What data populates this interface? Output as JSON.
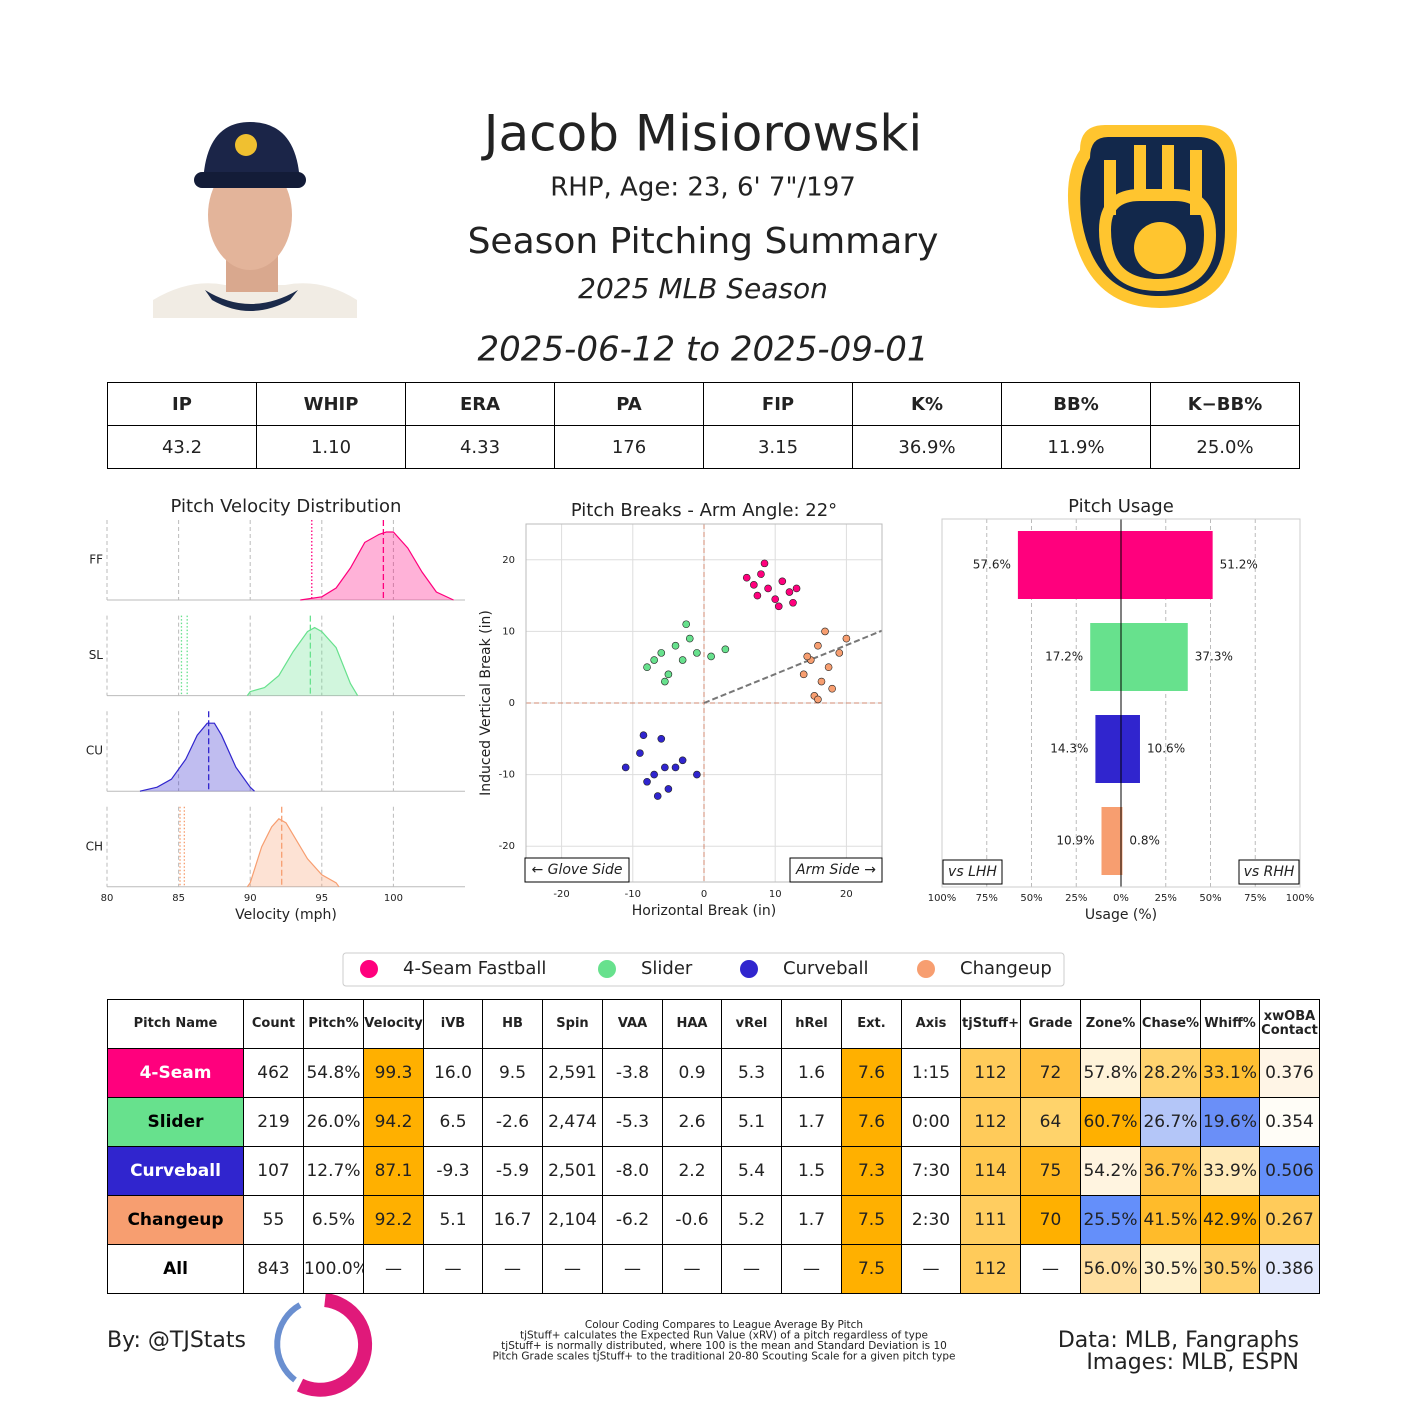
{
  "header": {
    "name": "Jacob Misiorowski",
    "bio": "RHP, Age: 23, 6' 7\"/197",
    "title": "Season Pitching Summary",
    "season": "2025 MLB Season",
    "dates": "2025-06-12 to 2025-09-01"
  },
  "stats": {
    "columns": [
      "IP",
      "WHIP",
      "ERA",
      "PA",
      "FIP",
      "K%",
      "BB%",
      "K−BB%"
    ],
    "values": [
      "43.2",
      "1.10",
      "4.33",
      "176",
      "3.15",
      "36.9%",
      "11.9%",
      "25.0%"
    ]
  },
  "chart_data": [
    {
      "type": "density",
      "title": "Pitch Velocity Distribution",
      "xlabel": "Velocity (mph)",
      "xlim": [
        80,
        105
      ],
      "xticks": [
        80,
        85,
        90,
        95,
        100
      ],
      "ylim": [
        0,
        1
      ],
      "grid": true,
      "series": [
        {
          "name": "FF",
          "color": "#ff007d",
          "x": [
            93.5,
            95,
            96,
            97,
            98,
            99,
            99.5,
            100,
            101,
            102,
            103,
            104.2
          ],
          "values": [
            0,
            0.04,
            0.15,
            0.4,
            0.72,
            0.82,
            0.85,
            0.85,
            0.65,
            0.35,
            0.1,
            0
          ],
          "mean": 99.3,
          "references": [
            94.3
          ]
        },
        {
          "name": "SL",
          "color": "#67e18d",
          "x": [
            89.8,
            90,
            91,
            92,
            93,
            94,
            94.5,
            95,
            96,
            97,
            97.5
          ],
          "values": [
            0,
            0.05,
            0.1,
            0.25,
            0.55,
            0.8,
            0.85,
            0.8,
            0.6,
            0.15,
            0
          ],
          "mean": 94.2,
          "references": [
            85.2,
            85.6
          ]
        },
        {
          "name": "CU",
          "color": "#3025ce",
          "x": [
            82.3,
            83.5,
            84.5,
            85.5,
            86.3,
            87,
            87.5,
            88,
            89,
            90,
            90.3
          ],
          "values": [
            0,
            0.05,
            0.15,
            0.4,
            0.7,
            0.85,
            0.85,
            0.7,
            0.3,
            0.05,
            0
          ],
          "mean": 87.1,
          "references": []
        },
        {
          "name": "CH",
          "color": "#f79e70",
          "x": [
            89.8,
            90,
            90.8,
            91.5,
            92,
            92.5,
            93,
            94,
            95,
            96,
            96.2
          ],
          "values": [
            0,
            0.05,
            0.5,
            0.75,
            0.85,
            0.8,
            0.65,
            0.35,
            0.15,
            0.05,
            0
          ],
          "mean": 92.2,
          "references": [
            85.1,
            85.4
          ]
        }
      ]
    },
    {
      "type": "scatter",
      "title": "Pitch Breaks - Arm Angle: 22°",
      "xlabel": "Horizontal Break (in)",
      "ylabel": "Induced Vertical Break (in)",
      "xlim": [
        -25,
        25
      ],
      "ylim": [
        -25,
        25
      ],
      "xticks": [
        -20,
        -10,
        0,
        10,
        20
      ],
      "yticks": [
        -20,
        -10,
        0,
        10,
        20
      ],
      "grid": true,
      "arm_angle": 22,
      "annotations": [
        "← Glove Side",
        "Arm Side →"
      ],
      "series": [
        {
          "name": "4-Seam Fastball",
          "color": "#ff007d",
          "x": [
            6,
            7.5,
            8,
            9,
            10,
            11,
            12,
            13,
            8.5,
            10.5,
            7,
            12.5
          ],
          "values": [
            17.5,
            15,
            18,
            16,
            14.5,
            17,
            15.5,
            16,
            19.5,
            13.5,
            16.5,
            14
          ]
        },
        {
          "name": "Slider",
          "color": "#67e18d",
          "x": [
            -8,
            -6,
            -5,
            -4,
            -3,
            -2,
            -1,
            1,
            3,
            -5.5,
            -2.5,
            -7
          ],
          "values": [
            5,
            7,
            4,
            8,
            6,
            9,
            7,
            6.5,
            7.5,
            3,
            11,
            6
          ]
        },
        {
          "name": "Curveball",
          "color": "#3025ce",
          "x": [
            -11,
            -9,
            -8,
            -7,
            -6,
            -5,
            -4,
            -3,
            -1,
            -6.5,
            -8.5,
            -5.5
          ],
          "values": [
            -9,
            -7,
            -11,
            -10,
            -5,
            -12,
            -9,
            -8,
            -10,
            -13,
            -4.5,
            -9
          ]
        },
        {
          "name": "Changeup",
          "color": "#f79e70",
          "x": [
            14,
            15,
            15.5,
            16,
            16.5,
            17,
            17.5,
            18,
            19,
            20,
            14.5,
            16
          ],
          "values": [
            4,
            6,
            1,
            8,
            3,
            10,
            5,
            2,
            7,
            9,
            6.5,
            0.5
          ]
        }
      ]
    },
    {
      "type": "diverging_bar",
      "title": "Pitch Usage",
      "xlabel": "Usage (%)",
      "xlim": [
        -100,
        100
      ],
      "grid": true,
      "xticks": [
        {
          "value": -100,
          "label": "100%"
        },
        {
          "value": -75,
          "label": "75%"
        },
        {
          "value": -50,
          "label": "50%"
        },
        {
          "value": -25,
          "label": "25%"
        },
        {
          "value": 0,
          "label": "0%"
        },
        {
          "value": 25,
          "label": "25%"
        },
        {
          "value": 50,
          "label": "50%"
        },
        {
          "value": 75,
          "label": "75%"
        },
        {
          "value": 100,
          "label": "100%"
        }
      ],
      "colors": [
        "#ff007d",
        "#67e18d",
        "#3025ce",
        "#f79e70"
      ],
      "series": [
        {
          "name": "vs LHH",
          "side": "left",
          "values": [
            57.6,
            17.2,
            14.3,
            10.9
          ],
          "value_labels": [
            "57.6%",
            "17.2%",
            "14.3%",
            "10.9%"
          ]
        },
        {
          "name": "vs RHH",
          "side": "right",
          "values": [
            51.2,
            37.3,
            10.6,
            0.8
          ],
          "value_labels": [
            "51.2%",
            "37.3%",
            "10.6%",
            "0.8%"
          ]
        }
      ]
    }
  ],
  "pitch_table": {
    "columns": [
      "Pitch Name",
      "Count",
      "Pitch%",
      "Velocity",
      "iVB",
      "HB",
      "Spin",
      "VAA",
      "HAA",
      "vRel",
      "hRel",
      "Ext.",
      "Axis",
      "tjStuff+",
      "Grade",
      "Zone%",
      "Chase%",
      "Whiff%",
      "xwOBA\nContact"
    ],
    "rows": [
      {
        "cells": [
          "4-Seam",
          "462",
          "54.8%",
          "99.3",
          "16.0",
          "9.5",
          "2,591",
          "-3.8",
          "0.9",
          "5.3",
          "1.6",
          "7.6",
          "1:15",
          "112",
          "72",
          "57.8%",
          "28.2%",
          "33.1%",
          "0.376"
        ],
        "colors": [
          "#ff007d",
          "#ffffff",
          "#ffffff",
          "#ffb000",
          "#ffffff",
          "#ffffff",
          "#ffffff",
          "#ffffff",
          "#ffffff",
          "#ffffff",
          "#ffffff",
          "#ffb000",
          "#ffffff",
          "#ffcb5a",
          "#ffc040",
          "#fff3d9",
          "#ffd36f",
          "#ffc033",
          "#fff5e6"
        ]
      },
      {
        "cells": [
          "Slider",
          "219",
          "26.0%",
          "94.2",
          "6.5",
          "-2.6",
          "2,474",
          "-5.3",
          "2.6",
          "5.1",
          "1.7",
          "7.6",
          "0:00",
          "112",
          "64",
          "60.7%",
          "26.7%",
          "19.6%",
          "0.354"
        ],
        "colors": [
          "#67e18d",
          "#ffffff",
          "#ffffff",
          "#ffb000",
          "#ffffff",
          "#ffffff",
          "#ffffff",
          "#ffffff",
          "#ffffff",
          "#ffffff",
          "#ffffff",
          "#ffb000",
          "#ffffff",
          "#ffcb5a",
          "#ffd36b",
          "#ffb000",
          "#b4c6f8",
          "#6a8ff8",
          "#fffdf7"
        ]
      },
      {
        "cells": [
          "Curveball",
          "107",
          "12.7%",
          "87.1",
          "-9.3",
          "-5.9",
          "2,501",
          "-8.0",
          "2.2",
          "5.4",
          "1.5",
          "7.3",
          "7:30",
          "114",
          "75",
          "54.2%",
          "36.7%",
          "33.9%",
          "0.506"
        ],
        "colors": [
          "#3025ce",
          "#ffffff",
          "#ffffff",
          "#ffb000",
          "#ffffff",
          "#ffffff",
          "#ffffff",
          "#ffffff",
          "#ffffff",
          "#ffffff",
          "#ffffff",
          "#ffb000",
          "#ffffff",
          "#ffc84f",
          "#ffb820",
          "#fff4e0",
          "#ffc040",
          "#ffeab8",
          "#648ffa"
        ]
      },
      {
        "cells": [
          "Changeup",
          "55",
          "6.5%",
          "92.2",
          "5.1",
          "16.7",
          "2,104",
          "-6.2",
          "-0.6",
          "5.2",
          "1.7",
          "7.5",
          "2:30",
          "111",
          "70",
          "25.5%",
          "41.5%",
          "42.9%",
          "0.267"
        ],
        "colors": [
          "#f79e70",
          "#ffffff",
          "#ffffff",
          "#ffb000",
          "#ffffff",
          "#ffffff",
          "#ffffff",
          "#ffffff",
          "#ffffff",
          "#ffffff",
          "#ffffff",
          "#ffb000",
          "#ffffff",
          "#ffcd60",
          "#ffb000",
          "#648ffa",
          "#ffbb2a",
          "#ffb000",
          "#ffcb5a"
        ]
      },
      {
        "cells": [
          "All",
          "843",
          "100.0%",
          "—",
          "—",
          "—",
          "—",
          "—",
          "—",
          "—",
          "—",
          "7.5",
          "—",
          "112",
          "—",
          "56.0%",
          "30.5%",
          "30.5%",
          "0.386"
        ],
        "colors": [
          "#ffffff",
          "#ffffff",
          "#ffffff",
          "#ffffff",
          "#ffffff",
          "#ffffff",
          "#ffffff",
          "#ffffff",
          "#ffffff",
          "#ffffff",
          "#ffffff",
          "#ffb000",
          "#ffffff",
          "#ffcb5a",
          "#ffffff",
          "#ffdfa0",
          "#fff1cc",
          "#ffd06a",
          "#e3e9fd"
        ]
      }
    ]
  },
  "footer": {
    "author": "By: @TJStats",
    "notes": [
      "Colour Coding Compares to League Average By Pitch",
      "tjStuff+ calculates the Expected Run Value (xRV) of a pitch regardless of type",
      "tjStuff+ is normally distributed, where 100 is the mean and Standard Deviation is 10",
      "Pitch Grade scales tjStuff+ to the traditional 20-80 Scouting Scale for a given pitch type"
    ],
    "data_source": "Data: MLB, Fangraphs",
    "image_source": "Images: MLB, ESPN"
  }
}
